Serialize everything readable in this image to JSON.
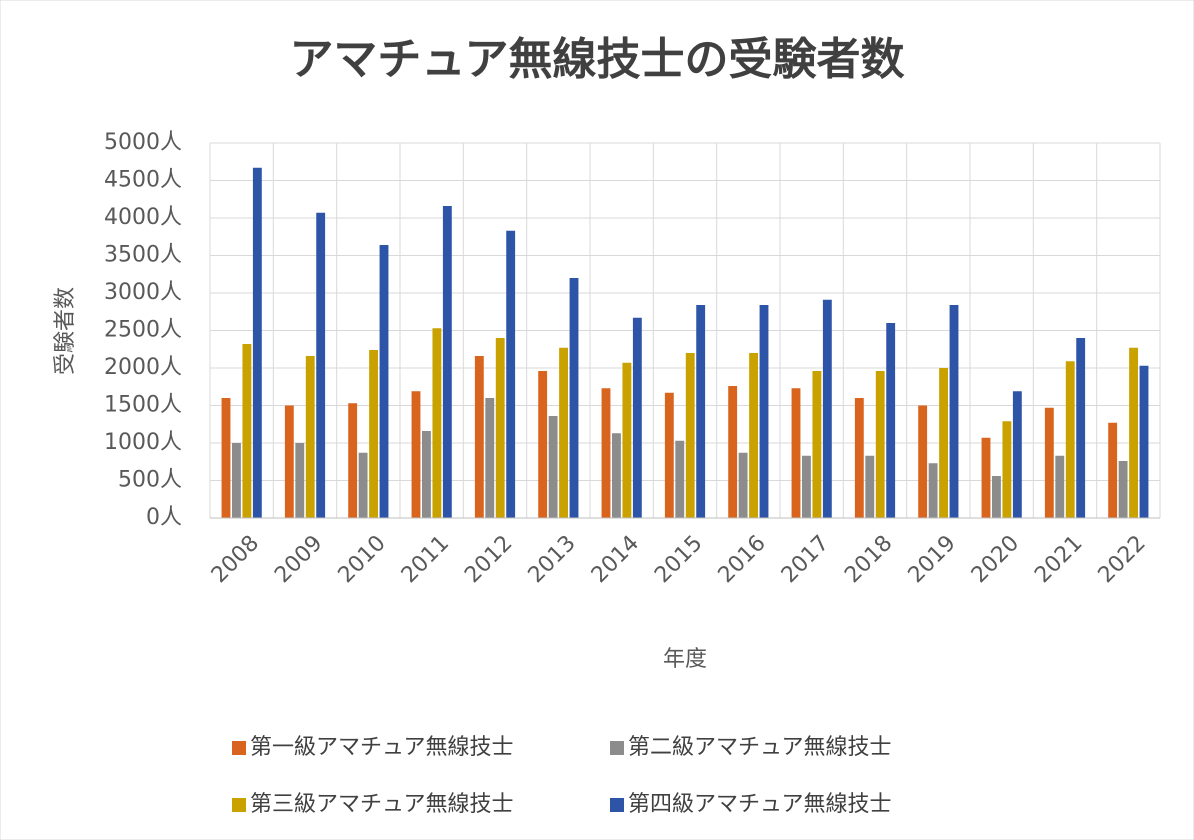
{
  "chart_data": {
    "type": "bar",
    "title": "アマチュア無線技士の受験者数",
    "x_label": "年度",
    "y_label": "受験者数",
    "categories": [
      "2008",
      "2009",
      "2010",
      "2011",
      "2012",
      "2013",
      "2014",
      "2015",
      "2016",
      "2017",
      "2018",
      "2019",
      "2020",
      "2021",
      "2022"
    ],
    "series": [
      {
        "name": "第一級アマチュア無線技士",
        "color": "#d9641e",
        "values": [
          1600,
          1500,
          1530,
          1690,
          2160,
          1960,
          1730,
          1670,
          1760,
          1730,
          1600,
          1500,
          1070,
          1470,
          1270
        ]
      },
      {
        "name": "第二級アマチュア無線技士",
        "color": "#8c8c8c",
        "values": [
          1000,
          1000,
          870,
          1160,
          1600,
          1360,
          1130,
          1030,
          870,
          830,
          830,
          730,
          560,
          830,
          760
        ]
      },
      {
        "name": "第三級アマチュア無線技士",
        "color": "#c9a200",
        "values": [
          2320,
          2160,
          2240,
          2530,
          2400,
          2270,
          2070,
          2200,
          2200,
          1960,
          1960,
          2000,
          1290,
          2090,
          2270
        ]
      },
      {
        "name": "第四級アマチュア無線技士",
        "color": "#2e54a8",
        "values": [
          4670,
          4070,
          3640,
          4160,
          3830,
          3200,
          2670,
          2840,
          2840,
          2910,
          2600,
          2840,
          1690,
          2400,
          2030
        ]
      }
    ],
    "ylim": [
      0,
      5000
    ],
    "yticks": [
      {
        "value": 0,
        "label": "0人"
      },
      {
        "value": 500,
        "label": "500人"
      },
      {
        "value": 1000,
        "label": "1000人"
      },
      {
        "value": 1500,
        "label": "1500人"
      },
      {
        "value": 2000,
        "label": "2000人"
      },
      {
        "value": 2500,
        "label": "2500人"
      },
      {
        "value": 3000,
        "label": "3000人"
      },
      {
        "value": 3500,
        "label": "3500人"
      },
      {
        "value": 4000,
        "label": "4000人"
      },
      {
        "value": 4500,
        "label": "4500人"
      },
      {
        "value": 5000,
        "label": "5000人"
      }
    ],
    "grid": true,
    "legend": "bottom"
  }
}
